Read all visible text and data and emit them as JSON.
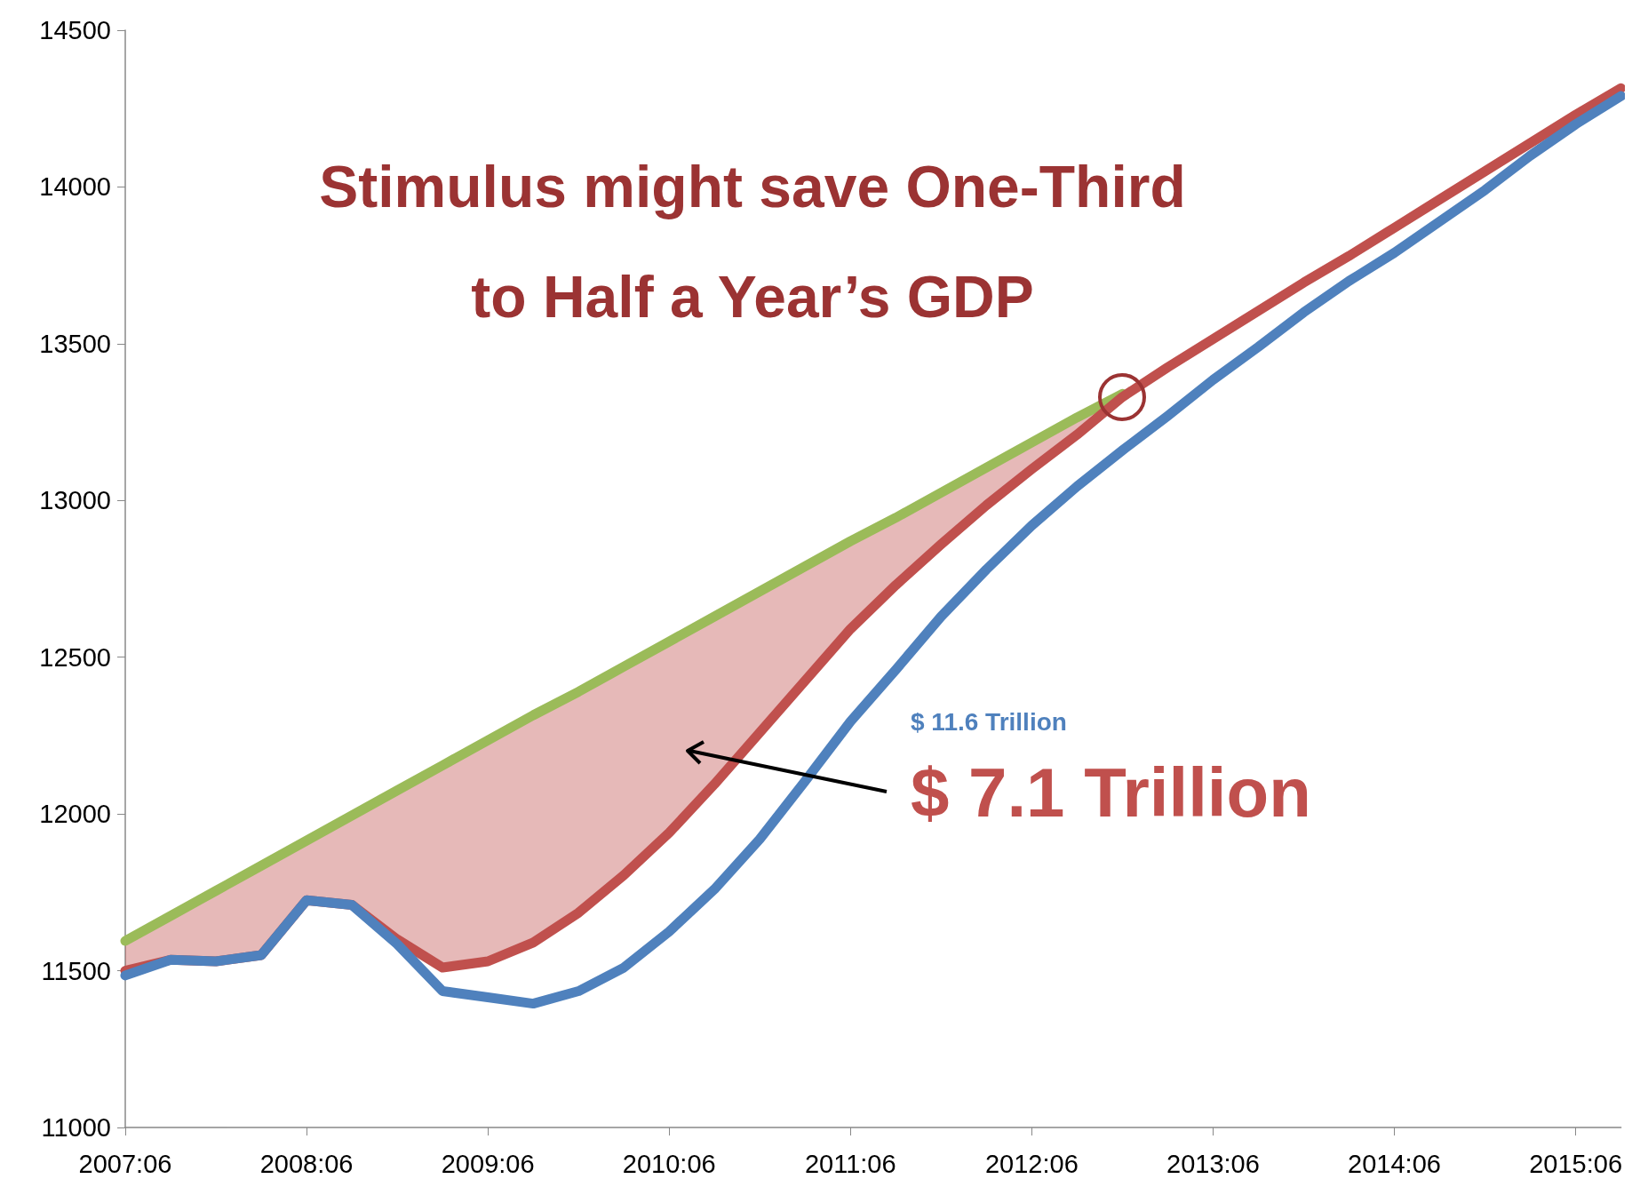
{
  "chart_data": {
    "type": "line",
    "title": "Stimulus might save One-Third\nto Half a Year’s GDP",
    "categories": [
      "2007:06",
      null,
      null,
      null,
      "2008:06",
      null,
      null,
      null,
      "2009:06",
      null,
      null,
      null,
      "2010:06",
      null,
      null,
      null,
      "2011:06",
      null,
      null,
      null,
      "2012:06",
      null,
      null,
      null,
      "2013:06",
      null,
      null,
      null,
      "2014:06",
      null,
      null,
      null,
      "2015:06",
      null
    ],
    "series": [
      {
        "color": "#9bbb59",
        "values": [
          11595,
          11675,
          11755,
          11835,
          11915,
          11995,
          12075,
          12155,
          12235,
          12315,
          12390,
          12470,
          12550,
          12630,
          12710,
          12790,
          12870,
          12945,
          13025,
          13105,
          13185,
          13265,
          13340,
          null,
          null,
          null,
          null,
          null,
          null,
          null,
          null,
          null,
          null,
          null
        ],
        "lower": [
          11500,
          11535,
          11530,
          11550,
          11725,
          11710,
          11600,
          11510,
          11530,
          11590,
          11685,
          11805,
          11940,
          12095,
          12260,
          12425,
          12590,
          12730,
          12860,
          12985,
          13100,
          13210,
          13330,
          null,
          null,
          null,
          null,
          null,
          null,
          null,
          null,
          null,
          null,
          null
        ],
        "upper": [
          11595,
          11675,
          11755,
          11835,
          11915,
          11995,
          12075,
          12155,
          12235,
          12315,
          12390,
          12470,
          12550,
          12630,
          12710,
          12790,
          12870,
          12945,
          13025,
          13105,
          13185,
          13265,
          13340,
          null,
          null,
          null,
          null,
          null,
          null,
          null,
          null,
          null,
          null,
          null
        ]
      },
      {
        "color": "#c0504d",
        "values": [
          11500,
          11535,
          11530,
          11550,
          11725,
          11710,
          11600,
          11510,
          11530,
          11590,
          11685,
          11805,
          11940,
          12095,
          12260,
          12425,
          12590,
          12730,
          12860,
          12985,
          13100,
          13210,
          13330,
          13425,
          13515,
          13605,
          13695,
          13780,
          13870,
          13960,
          14050,
          14140,
          14230,
          14315
        ]
      },
      {
        "color": "#4f81bd",
        "values": [
          11485,
          11535,
          11530,
          11550,
          11725,
          11710,
          11585,
          11435,
          11415,
          11395,
          11435,
          11510,
          11625,
          11760,
          11920,
          12105,
          12295,
          12460,
          12630,
          12780,
          12920,
          13045,
          13160,
          13270,
          13385,
          13490,
          13600,
          13700,
          13790,
          13890,
          13990,
          14100,
          14200,
          14290
        ]
      }
    ],
    "ylim": [
      11000,
      14500
    ],
    "yticks": [
      11000,
      11500,
      12000,
      12500,
      13000,
      13500,
      14000,
      14500
    ],
    "grid": false,
    "line_style": "solid",
    "annotations": [
      "$ 11.6 Trillion",
      "$ 7.1 Trillion"
    ]
  }
}
